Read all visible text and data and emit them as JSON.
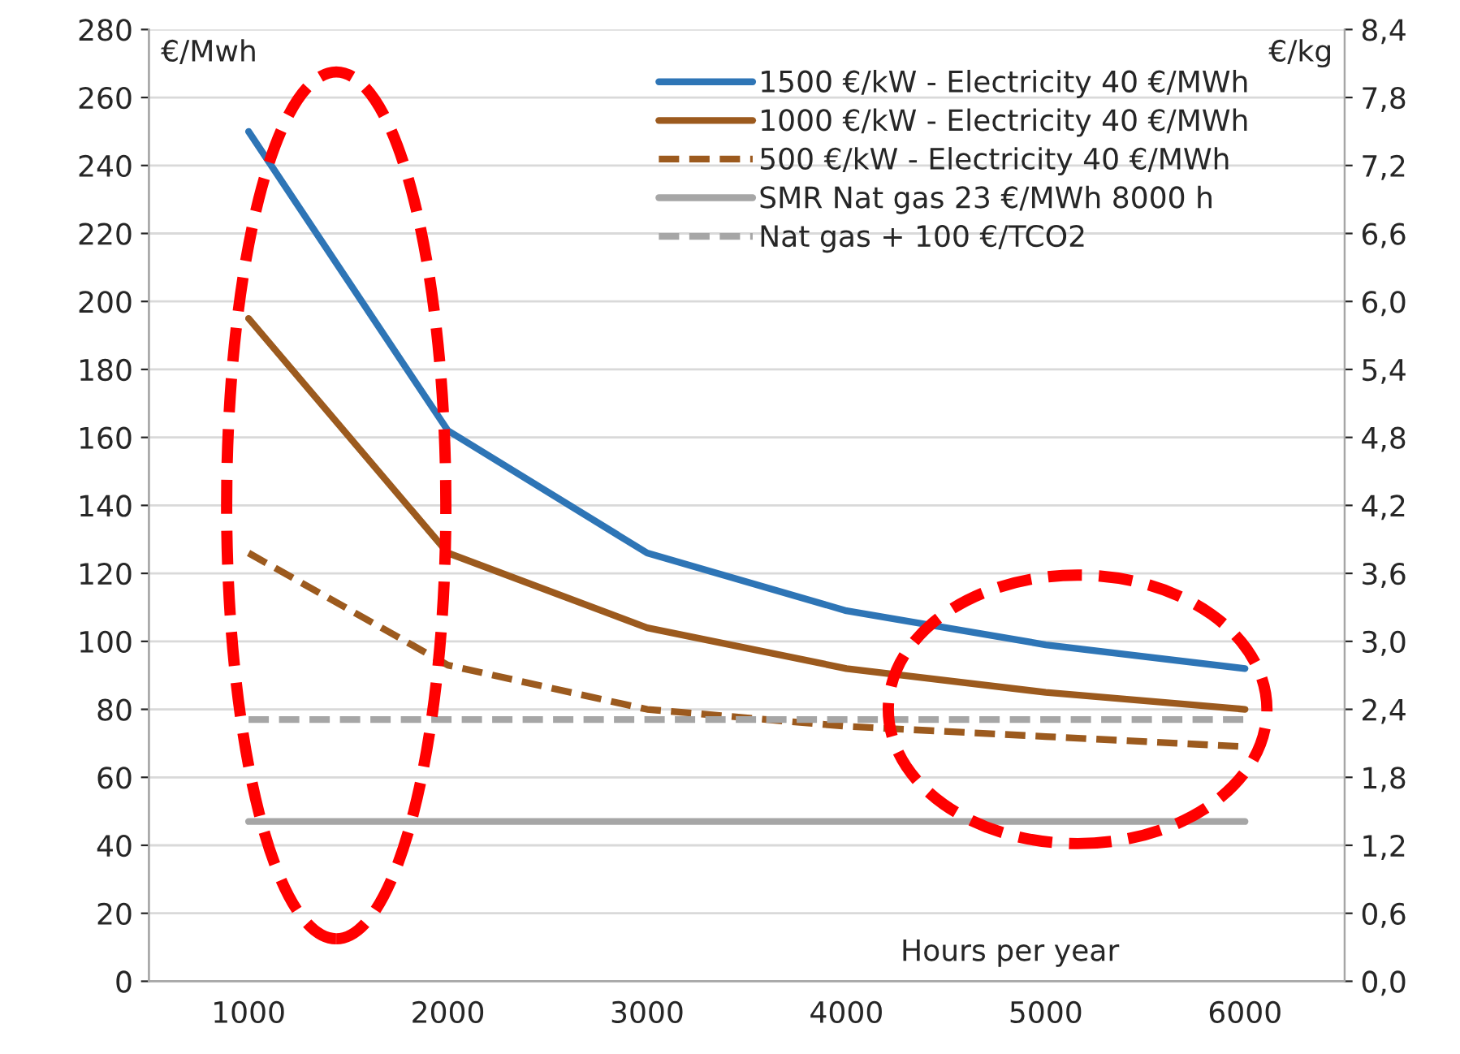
{
  "chart_data": {
    "type": "line",
    "xlabel": "Hours per year",
    "ylabel": "€/Mwh",
    "y2label": "€/kg",
    "categories": [
      "1000",
      "2000",
      "3000",
      "4000",
      "5000",
      "6000"
    ],
    "series": [
      {
        "name": "1500 €/kW - Electricity 40 €/MWh",
        "color": "#2e75b6",
        "line_style": "solid",
        "values": [
          250,
          162,
          126,
          109,
          99,
          92
        ]
      },
      {
        "name": "1000 €/kW - Electricity 40 €/MWh",
        "color": "#9c5a1e",
        "line_style": "solid",
        "values": [
          195,
          126,
          104,
          92,
          85,
          80
        ]
      },
      {
        "name": "500 €/kW - Electricity 40 €/MWh",
        "color": "#9c5a1e",
        "line_style": "dashed",
        "values": [
          126,
          93,
          80,
          75,
          72,
          69
        ]
      },
      {
        "name": "SMR Nat gas 23 €/MWh 8000 h",
        "color": "#a6a6a6",
        "line_style": "solid",
        "values": [
          47,
          47,
          47,
          47,
          47,
          47
        ]
      },
      {
        "name": "Nat gas + 100 €/TCO2",
        "color": "#a6a6a6",
        "line_style": "dashed",
        "values": [
          77,
          77,
          77,
          77,
          77,
          77
        ]
      }
    ],
    "ylim": [
      0,
      280
    ],
    "yticks": [
      0,
      20,
      40,
      60,
      80,
      100,
      120,
      140,
      160,
      180,
      200,
      220,
      240,
      260,
      280
    ],
    "y2lim": [
      0,
      8.4
    ],
    "y2ticks": [
      {
        "value": 0,
        "label": "0,0"
      },
      {
        "value": 0.6,
        "label": "0,6"
      },
      {
        "value": 1.2,
        "label": "1,2"
      },
      {
        "value": 1.8,
        "label": "1,8"
      },
      {
        "value": 2.4,
        "label": "2,4"
      },
      {
        "value": 3.0,
        "label": "3,0"
      },
      {
        "value": 3.6,
        "label": "3,6"
      },
      {
        "value": 4.2,
        "label": "4,2"
      },
      {
        "value": 4.8,
        "label": "4,8"
      },
      {
        "value": 5.4,
        "label": "5,4"
      },
      {
        "value": 6.0,
        "label": "6,0"
      },
      {
        "value": 6.6,
        "label": "6,6"
      },
      {
        "value": 7.2,
        "label": "7,2"
      },
      {
        "value": 7.8,
        "label": "7,8"
      },
      {
        "value": 8.4,
        "label": "8,4"
      }
    ],
    "grid": "y",
    "legend": "top right"
  }
}
